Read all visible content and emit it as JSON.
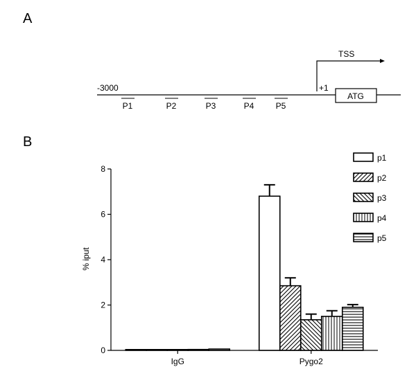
{
  "panels": [
    "A",
    "B"
  ],
  "promoter": {
    "start_label": "-3000",
    "plus_one_label": "+1",
    "tss_label": "TSS",
    "atg_label": "ATG",
    "primers": [
      "P1",
      "P2",
      "P3",
      "P4",
      "P5"
    ]
  },
  "chart_data": {
    "type": "bar",
    "title": "",
    "xlabel": "",
    "ylabel": "% iput",
    "ylim": [
      0,
      8
    ],
    "yticks": [
      0,
      2,
      4,
      6,
      8
    ],
    "categories": [
      "IgG",
      "Pygo2"
    ],
    "legend_placement": "top-right",
    "grid": false,
    "series": [
      {
        "name": "p1",
        "pattern": "open",
        "values": [
          0.03,
          6.8
        ],
        "errors": [
          0.01,
          0.5
        ]
      },
      {
        "name": "p2",
        "pattern": "diag-right",
        "values": [
          0.03,
          2.85
        ],
        "errors": [
          0.01,
          0.35
        ]
      },
      {
        "name": "p3",
        "pattern": "diag-left",
        "values": [
          0.01,
          1.35
        ],
        "errors": [
          0.01,
          0.25
        ]
      },
      {
        "name": "p4",
        "pattern": "vertical",
        "values": [
          0.04,
          1.5
        ],
        "errors": [
          0.01,
          0.25
        ]
      },
      {
        "name": "p5",
        "pattern": "horizontal",
        "values": [
          0.06,
          1.9
        ],
        "errors": [
          0.01,
          0.12
        ]
      }
    ]
  }
}
